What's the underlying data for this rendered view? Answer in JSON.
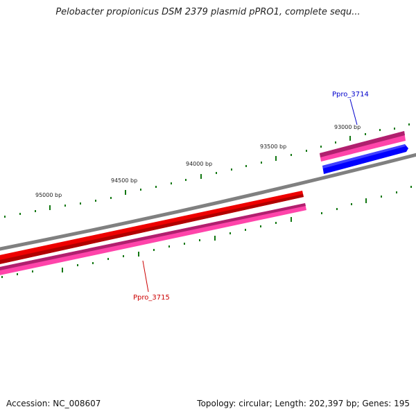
{
  "title": "Pelobacter propionicus DSM 2379 plasmid pPRO1, complete sequ...",
  "footer": {
    "accession": "Accession: NC_008607",
    "summary": "Topology: circular; Length: 202,397 bp; Genes: 195"
  },
  "scale_labels": [
    {
      "text": "93000 bp"
    },
    {
      "text": "93500 bp"
    },
    {
      "text": "94000 bp"
    },
    {
      "text": "94500 bp"
    },
    {
      "text": "95000 bp"
    }
  ],
  "genes": [
    {
      "name": "Ppro_3714",
      "color": "#0000cc"
    },
    {
      "name": "Ppro_3715",
      "color": "#cc0000"
    }
  ],
  "colors": {
    "backbone": "#808080",
    "cds_red": "#ee0000",
    "cds_pink": "#ff33aa",
    "cds_blue": "#0000ff",
    "ticks": "#117711"
  }
}
